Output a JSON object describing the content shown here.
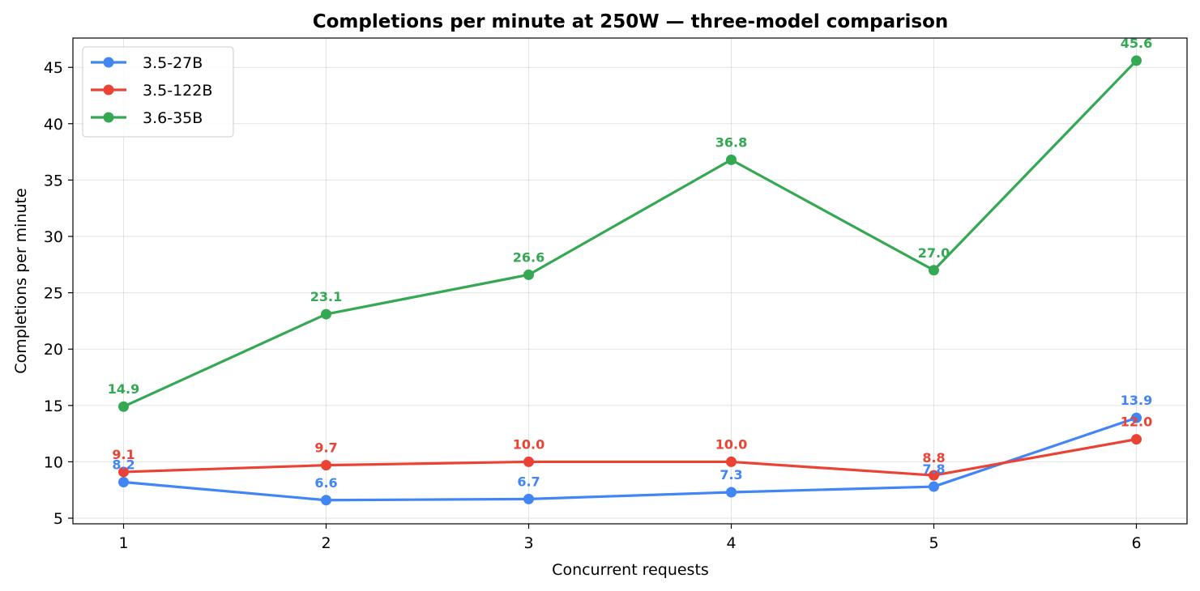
{
  "chart_data": {
    "type": "line",
    "title": "Completions per minute at 250W — three-model comparison",
    "xlabel": "Concurrent requests",
    "ylabel": "Completions per minute",
    "x": [
      1,
      2,
      3,
      4,
      5,
      6
    ],
    "x_ticks": [
      "1",
      "2",
      "3",
      "4",
      "5",
      "6"
    ],
    "y_ticks": [
      "5",
      "10",
      "15",
      "20",
      "25",
      "30",
      "35",
      "40",
      "45"
    ],
    "xlim": [
      0.75,
      6.25
    ],
    "ylim": [
      4.5,
      47.6
    ],
    "grid": true,
    "legend_position": "top-left",
    "series": [
      {
        "name": "3.5-27B",
        "color": "#4285f4",
        "values": [
          8.2,
          6.6,
          6.7,
          7.3,
          7.8,
          13.9
        ],
        "labels": [
          "8.2",
          "6.6",
          "6.7",
          "7.3",
          "7.8",
          "13.9"
        ]
      },
      {
        "name": "3.5-122B",
        "color": "#ea4335",
        "values": [
          9.1,
          9.7,
          10.0,
          10.0,
          8.8,
          12.0
        ],
        "labels": [
          "9.1",
          "9.7",
          "10.0",
          "10.0",
          "8.8",
          "12.0"
        ]
      },
      {
        "name": "3.6-35B",
        "color": "#34a853",
        "values": [
          14.9,
          23.1,
          26.6,
          36.8,
          27.0,
          45.6
        ],
        "labels": [
          "14.9",
          "23.1",
          "26.6",
          "36.8",
          "27.0",
          "45.6"
        ]
      }
    ]
  }
}
